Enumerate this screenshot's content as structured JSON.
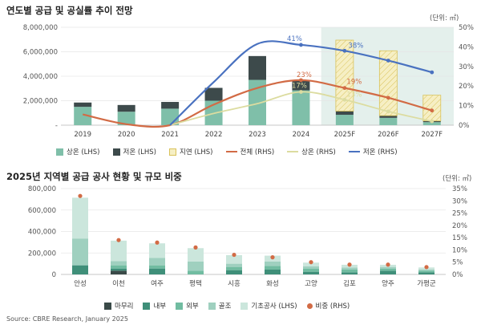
{
  "colors": {
    "sangon_bar": "#7fbfa9",
    "jeoon_bar": "#3d4a4b",
    "jiyeon_bar": "#f6efc4",
    "jiyeon_hatch": "#d9c25a",
    "total_line": "#d26b45",
    "sangon_line": "#dcdca0",
    "jeoon_line": "#4a72c0",
    "forecast_bg": "#e4f0ec",
    "s2_maru": "#3a4a48",
    "s2_naebu": "#3f8f79",
    "s2_oebu": "#71bca1",
    "s2_golgjo": "#9fd0bf",
    "s2_gicho": "#cbe6dc",
    "s2_ratio": "#d26b45"
  },
  "chart_data": [
    {
      "type": "bar",
      "title": "연도별 공급 및 공실률 추이 전망",
      "unit": "(단위: ㎡)",
      "categories": [
        "2019",
        "2020",
        "2021",
        "2022",
        "2023",
        "2024",
        "2025F",
        "2026F",
        "2027F"
      ],
      "forecast_start_index": 6,
      "y_left": {
        "min": 0,
        "max": 8000000,
        "ticks": [
          "-",
          "2,000,000",
          "4,000,000",
          "6,000,000",
          "8,000,000"
        ]
      },
      "y_right": {
        "min": 0,
        "max": 50,
        "ticks": [
          "0%",
          "10%",
          "20%",
          "30%",
          "40%",
          "50%"
        ]
      },
      "bar_series": [
        {
          "name": "상온 (LHS)",
          "values": [
            1500000,
            1100000,
            1350000,
            2000000,
            3700000,
            2850000,
            850000,
            600000,
            250000
          ]
        },
        {
          "name": "저온 (LHS)",
          "values": [
            350000,
            550000,
            550000,
            1050000,
            1950000,
            800000,
            300000,
            180000,
            100000
          ]
        },
        {
          "name": "지연 (LHS)",
          "values": [
            0,
            0,
            0,
            0,
            0,
            0,
            5800000,
            5300000,
            2100000
          ]
        }
      ],
      "line_series": [
        {
          "name": "전체 (RHS)",
          "values": [
            5.5,
            0.5,
            0,
            10.5,
            19,
            23,
            19,
            14,
            7.5
          ]
        },
        {
          "name": "상온 (RHS)",
          "values": [
            null,
            null,
            0,
            6,
            11,
            17,
            13,
            7,
            2
          ]
        },
        {
          "name": "저온 (RHS)",
          "values": [
            null,
            null,
            0,
            22,
            41.5,
            41,
            38,
            33,
            27
          ]
        }
      ],
      "point_labels": [
        {
          "series": 2,
          "index": 5,
          "text": "41%"
        },
        {
          "series": 2,
          "index": 6,
          "text": "38%"
        },
        {
          "series": 0,
          "index": 5,
          "text": "23%"
        },
        {
          "series": 0,
          "index": 6,
          "text": "19%"
        },
        {
          "series": 1,
          "index": 5,
          "text": "17%"
        },
        {
          "series": 1,
          "index": 6,
          "text": "13%"
        }
      ],
      "legend": [
        "상온 (LHS)",
        "저온 (LHS)",
        "지연 (LHS)",
        "전체 (RHS)",
        "상온 (RHS)",
        "저온 (RHS)"
      ]
    },
    {
      "type": "bar",
      "title": "2025년 지역별 공급 공사 현황 및 규모 비중",
      "unit": "(단위: ㎡)",
      "categories": [
        "안성",
        "이천",
        "여주",
        "평택",
        "시흥",
        "화성",
        "고양",
        "김포",
        "양주",
        "가평군"
      ],
      "y_left": {
        "min": 0,
        "max": 800000,
        "ticks": [
          "0",
          "200,000",
          "400,000",
          "600,000",
          "800,000"
        ]
      },
      "y_right": {
        "min": 0,
        "max": 35,
        "ticks": [
          "0%",
          "5%",
          "10%",
          "15%",
          "20%",
          "25%",
          "30%",
          "35%"
        ]
      },
      "bar_series": [
        {
          "name": "마무리",
          "values": [
            0,
            35000,
            0,
            0,
            0,
            0,
            0,
            0,
            0,
            0
          ]
        },
        {
          "name": "내부",
          "values": [
            85000,
            20000,
            55000,
            0,
            40000,
            45000,
            25000,
            20000,
            35000,
            20000
          ]
        },
        {
          "name": "외부",
          "values": [
            0,
            30000,
            30000,
            35000,
            30000,
            35000,
            30000,
            25000,
            20000,
            15000
          ]
        },
        {
          "name": "골조",
          "values": [
            250000,
            40000,
            70000,
            85000,
            30000,
            40000,
            20000,
            20000,
            15000,
            10000
          ]
        },
        {
          "name": "기초공사 (LHS)",
          "values": [
            380000,
            190000,
            135000,
            125000,
            80000,
            55000,
            35000,
            25000,
            20000,
            20000
          ]
        }
      ],
      "ratio_series": {
        "name": "비중 (RHS)",
        "values": [
          32,
          14,
          13,
          11,
          8,
          7,
          5,
          4,
          4,
          3
        ]
      },
      "legend": [
        "마무리",
        "내부",
        "외부",
        "골조",
        "기초공사 (LHS)",
        "비중 (RHS)"
      ]
    }
  ],
  "source": "Source: CBRE Research, January 2025"
}
